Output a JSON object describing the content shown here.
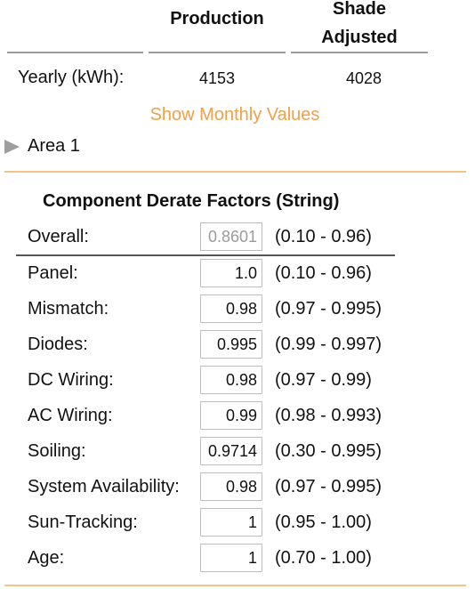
{
  "production_table": {
    "col1_header": "Production",
    "col2_header_line1": "Shade",
    "col2_header_line2": "Adjusted",
    "row_label": "Yearly (kWh):",
    "production_value": "4153",
    "shade_adjusted_value": "4028"
  },
  "show_monthly_link": "Show Monthly Values",
  "area_toggle_label": "Area 1",
  "derate": {
    "title": "Component Derate Factors (String)",
    "rows": [
      {
        "label": "Overall:",
        "value": "0.8601",
        "range": "(0.10 - 0.96)"
      },
      {
        "label": "Panel:",
        "value": "1.0",
        "range": "(0.10 - 0.96)"
      },
      {
        "label": "Mismatch:",
        "value": "0.98",
        "range": "(0.97 - 0.995)"
      },
      {
        "label": "Diodes:",
        "value": "0.995",
        "range": "(0.99 - 0.997)"
      },
      {
        "label": "DC Wiring:",
        "value": "0.98",
        "range": "(0.97 - 0.99)"
      },
      {
        "label": "AC Wiring:",
        "value": "0.99",
        "range": "(0.98 - 0.993)"
      },
      {
        "label": "Soiling:",
        "value": "0.9714",
        "range": "(0.30 - 0.995)"
      },
      {
        "label": "System Availability:",
        "value": "0.98",
        "range": "(0.97 - 0.995)"
      },
      {
        "label": "Sun-Tracking:",
        "value": "1",
        "range": "(0.95 - 1.00)"
      },
      {
        "label": "Age:",
        "value": "1",
        "range": "(0.70 - 1.00)"
      }
    ]
  },
  "colors": {
    "link": "#f0a048",
    "divider": "#f4c58a"
  }
}
